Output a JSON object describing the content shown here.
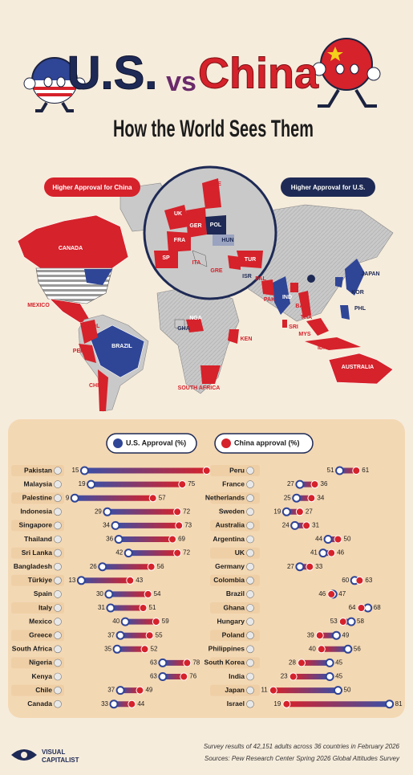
{
  "header": {
    "title_us": "U.S.",
    "title_vs": "vs",
    "title_china": "China",
    "subtitle": "How the World Sees Them"
  },
  "map": {
    "legend_china": "Higher Approval for China",
    "legend_us": "Higher Approval for U.S.",
    "labels": [
      "CANADA",
      "MEXICO",
      "COL",
      "PER",
      "BRAZIL",
      "CHI",
      "GHA",
      "NGA",
      "KEN",
      "SOUTH AFRICA",
      "UK",
      "GER",
      "SWE",
      "POL",
      "FRA",
      "HUN",
      "SP",
      "ITA",
      "GRE",
      "TUR",
      "ISR",
      "PAL",
      "PAK",
      "IND",
      "BAN",
      "THA",
      "SRI",
      "MYS",
      "IDN",
      "JAPAN",
      "KOR",
      "PHL",
      "AUSTRALIA"
    ]
  },
  "chart_data": {
    "type": "dumbbell",
    "xlim": [
      0,
      100
    ],
    "categories": [
      "Pakistan",
      "Malaysia",
      "Palestine",
      "Indonesia",
      "Singapore",
      "Thailand",
      "Sri Lanka",
      "Bangladesh",
      "Türkiye",
      "Spain",
      "Italy",
      "Mexico",
      "Greece",
      "South Africa",
      "Nigeria",
      "Kenya",
      "Chile",
      "Canada",
      "Peru",
      "France",
      "Netherlands",
      "Sweden",
      "Australia",
      "Argentina",
      "UK",
      "Germany",
      "Colombia",
      "Brazil",
      "Ghana",
      "Hungary",
      "Poland",
      "Philippines",
      "South Korea",
      "India",
      "Japan",
      "Israel"
    ],
    "series": [
      {
        "name": "U.S. Approval (%)",
        "color": "#2f4596",
        "values": [
          15,
          19,
          9,
          29,
          34,
          36,
          42,
          26,
          13,
          30,
          31,
          40,
          37,
          35,
          63,
          63,
          37,
          33,
          51,
          27,
          25,
          19,
          24,
          44,
          41,
          27,
          60,
          47,
          68,
          58,
          49,
          56,
          45,
          45,
          50,
          81
        ]
      },
      {
        "name": "China approval (%)",
        "color": "#d5222b",
        "values": [
          90,
          75,
          57,
          72,
          73,
          69,
          72,
          56,
          43,
          54,
          51,
          59,
          55,
          52,
          78,
          76,
          49,
          44,
          61,
          36,
          34,
          27,
          31,
          50,
          46,
          33,
          63,
          46,
          64,
          53,
          39,
          40,
          28,
          23,
          11,
          19
        ]
      }
    ]
  },
  "footer": {
    "note": "Survey results of 42,151 adults across 36 countries in February 2026",
    "source": "Sources: Pew Research Center Spring 2026 Global Attitudes Survey",
    "logo_top": "VISUAL",
    "logo_bottom": "CAPITALIST"
  }
}
